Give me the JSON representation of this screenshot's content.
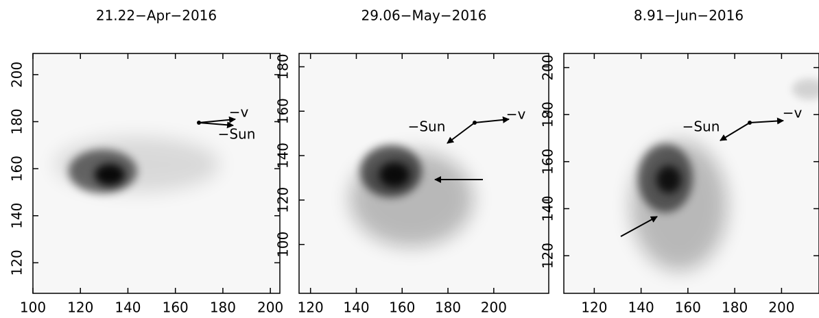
{
  "chart_data": [
    {
      "type": "image",
      "title": "21.22−Apr−2016",
      "xlim": [
        100,
        204
      ],
      "ylim": [
        107,
        209
      ],
      "xticks": [
        100,
        120,
        140,
        160,
        180,
        200
      ],
      "yticks": [
        120,
        140,
        160,
        180,
        200
      ],
      "annotations": [
        "−v",
        "−Sun"
      ]
    },
    {
      "type": "image",
      "title": "29.06−May−2016",
      "xlim": [
        115,
        224
      ],
      "ylim": [
        78,
        186
      ],
      "xticks": [
        120,
        140,
        160,
        180,
        200
      ],
      "yticks": [
        100,
        120,
        140,
        160,
        180
      ],
      "annotations": [
        "−Sun",
        "−v"
      ]
    },
    {
      "type": "image",
      "title": "8.91−Jun−2016",
      "xlim": [
        107,
        216
      ],
      "ylim": [
        104,
        206
      ],
      "xticks": [
        120,
        140,
        160,
        180,
        200
      ],
      "yticks": [
        120,
        140,
        160,
        180,
        200
      ],
      "annotations": [
        "−Sun",
        "−v"
      ]
    }
  ]
}
